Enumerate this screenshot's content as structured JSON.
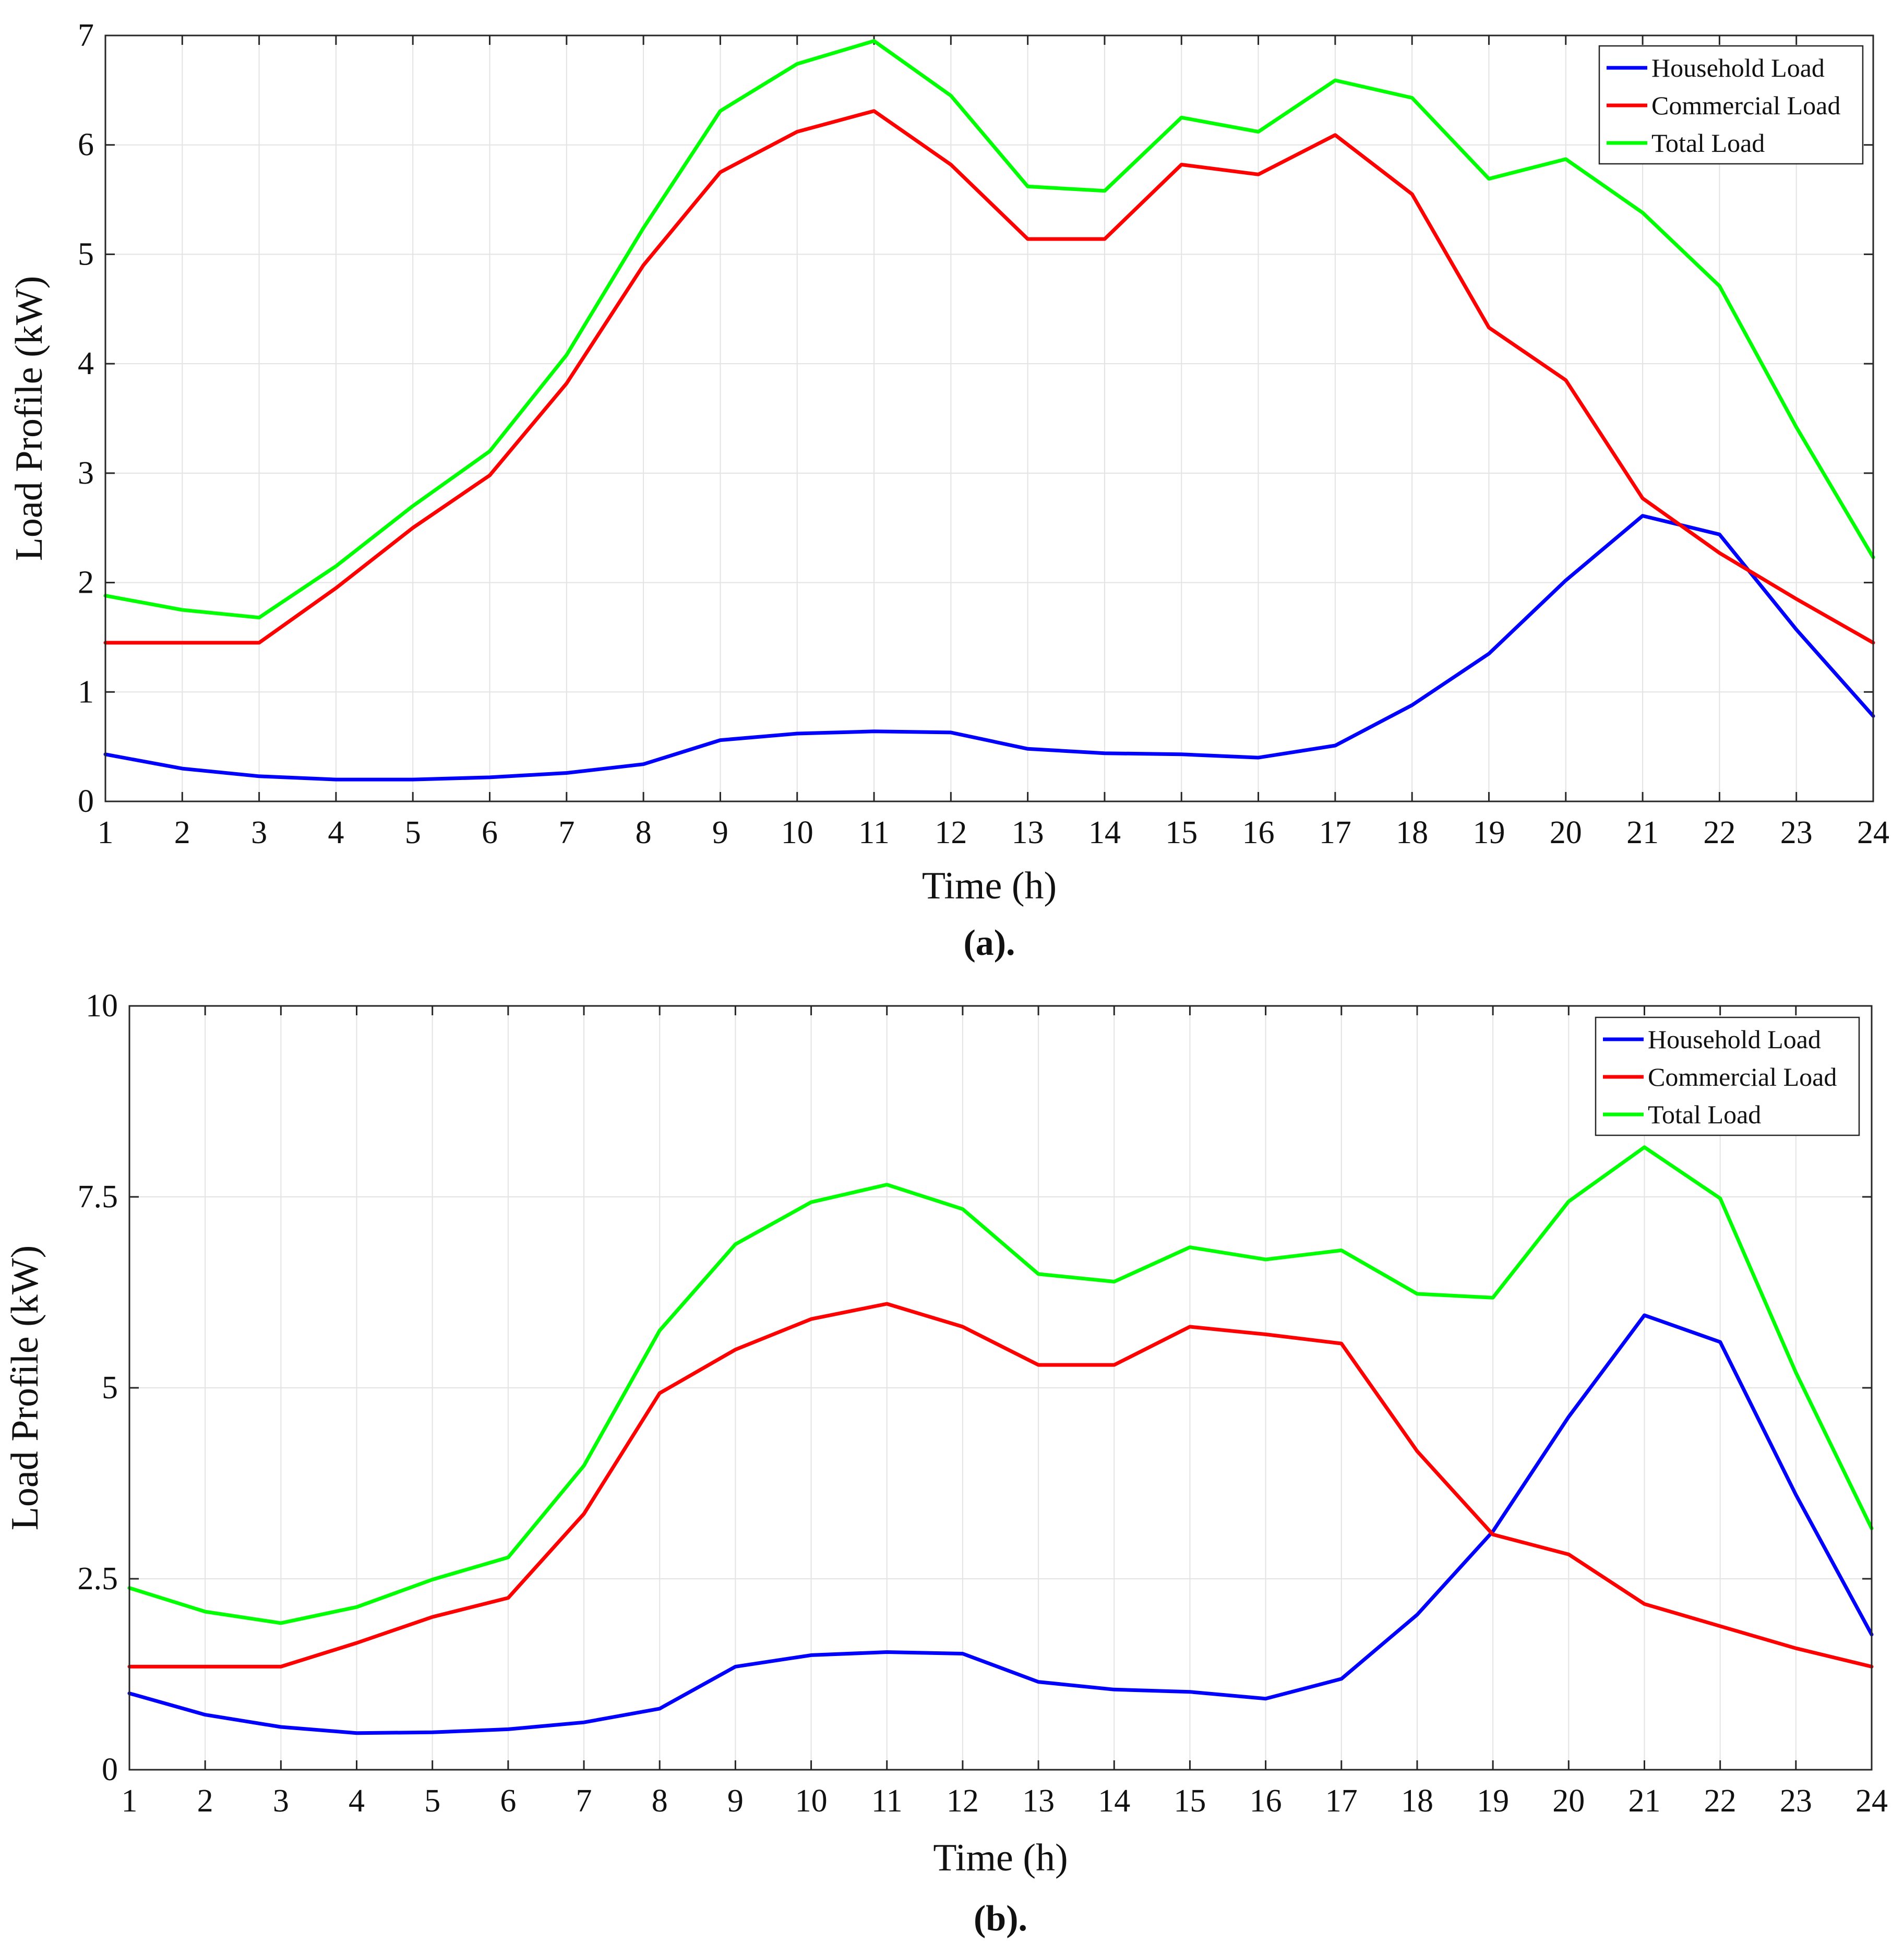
{
  "chart_data": [
    {
      "type": "line",
      "caption": "(a).",
      "xlabel": "Time (h)",
      "ylabel": "Load Profile (kW)",
      "xlim": [
        1,
        24
      ],
      "ylim": [
        0,
        7
      ],
      "xticks": [
        1,
        2,
        3,
        4,
        5,
        6,
        7,
        8,
        9,
        10,
        11,
        12,
        13,
        14,
        15,
        16,
        17,
        18,
        19,
        20,
        21,
        22,
        23,
        24
      ],
      "yticks": [
        0,
        1,
        2,
        3,
        4,
        5,
        6,
        7
      ],
      "ytick_labels": [
        "0",
        "1",
        "2",
        "3",
        "4",
        "5",
        "6",
        "7"
      ],
      "grid": true,
      "legend_position": "top-right",
      "x": [
        1,
        2,
        3,
        4,
        5,
        6,
        7,
        8,
        9,
        10,
        11,
        12,
        13,
        14,
        15,
        16,
        17,
        18,
        19,
        20,
        21,
        22,
        23,
        24
      ],
      "series": [
        {
          "name": "Household Load",
          "color": "#0000ff",
          "values": [
            0.43,
            0.3,
            0.23,
            0.2,
            0.2,
            0.22,
            0.26,
            0.34,
            0.56,
            0.62,
            0.64,
            0.63,
            0.48,
            0.44,
            0.43,
            0.4,
            0.51,
            0.88,
            1.35,
            2.02,
            2.61,
            2.44,
            1.57,
            0.78
          ]
        },
        {
          "name": "Commercial Load",
          "color": "#ff0000",
          "values": [
            1.45,
            1.45,
            1.45,
            1.95,
            2.5,
            2.98,
            3.82,
            4.9,
            5.75,
            6.12,
            6.31,
            5.82,
            5.14,
            5.14,
            5.82,
            5.73,
            6.09,
            5.55,
            4.33,
            3.85,
            2.77,
            2.27,
            1.85,
            1.45
          ]
        },
        {
          "name": "Total Load",
          "color": "#00ff00",
          "values": [
            1.88,
            1.75,
            1.68,
            2.15,
            2.7,
            3.2,
            4.08,
            5.24,
            6.31,
            6.74,
            6.95,
            6.45,
            5.62,
            5.58,
            6.25,
            6.12,
            6.59,
            6.43,
            5.69,
            5.87,
            5.38,
            4.71,
            3.42,
            2.23
          ]
        }
      ]
    },
    {
      "type": "line",
      "caption": "(b).",
      "xlabel": "Time (h)",
      "ylabel": "Load Profile (kW)",
      "xlim": [
        1,
        24
      ],
      "ylim": [
        0,
        10
      ],
      "xticks": [
        1,
        2,
        3,
        4,
        5,
        6,
        7,
        8,
        9,
        10,
        11,
        12,
        13,
        14,
        15,
        16,
        17,
        18,
        19,
        20,
        21,
        22,
        23,
        24
      ],
      "yticks": [
        0,
        2.5,
        5,
        7.5,
        10
      ],
      "ytick_labels": [
        "0",
        "2.5",
        "5",
        "7.5",
        "10"
      ],
      "grid": true,
      "legend_position": "top-right",
      "x": [
        1,
        2,
        3,
        4,
        5,
        6,
        7,
        8,
        9,
        10,
        11,
        12,
        13,
        14,
        15,
        16,
        17,
        18,
        19,
        20,
        21,
        22,
        23,
        24
      ],
      "series": [
        {
          "name": "Household Load",
          "color": "#0000ff",
          "values": [
            1.0,
            0.72,
            0.56,
            0.48,
            0.49,
            0.53,
            0.62,
            0.8,
            1.35,
            1.5,
            1.54,
            1.52,
            1.15,
            1.05,
            1.02,
            0.93,
            1.19,
            2.03,
            3.12,
            4.62,
            5.95,
            5.6,
            3.6,
            1.77
          ]
        },
        {
          "name": "Commercial Load",
          "color": "#ff0000",
          "values": [
            1.35,
            1.35,
            1.35,
            1.66,
            2.0,
            2.25,
            3.35,
            4.93,
            5.5,
            5.9,
            6.1,
            5.8,
            5.3,
            5.3,
            5.8,
            5.7,
            5.58,
            4.17,
            3.08,
            2.82,
            2.17,
            1.88,
            1.59,
            1.35
          ]
        },
        {
          "name": "Total Load",
          "color": "#00ff00",
          "values": [
            2.38,
            2.07,
            1.92,
            2.13,
            2.49,
            2.78,
            3.98,
            5.75,
            6.88,
            7.43,
            7.66,
            7.34,
            6.49,
            6.39,
            6.84,
            6.68,
            6.8,
            6.23,
            6.18,
            7.44,
            8.15,
            7.48,
            5.2,
            3.16
          ]
        }
      ]
    }
  ]
}
